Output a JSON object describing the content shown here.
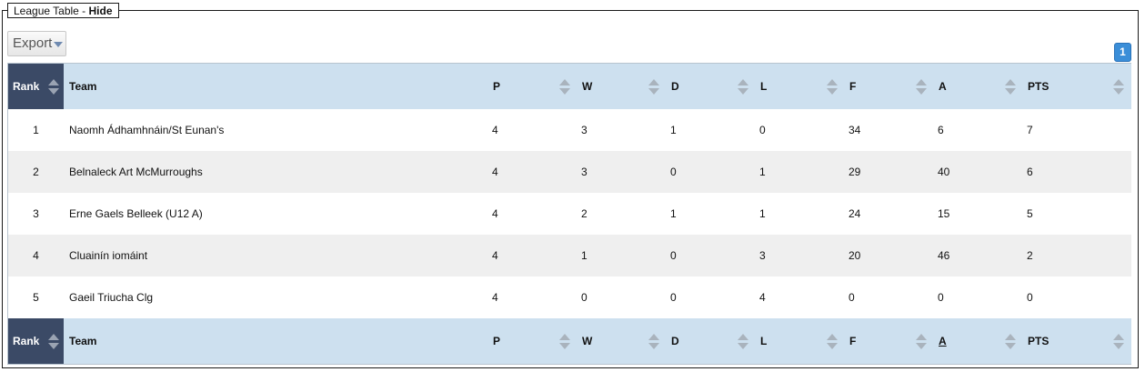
{
  "legend": {
    "title": "League Table - ",
    "hide_label": "Hide"
  },
  "toolbar": {
    "export_label": "Export"
  },
  "pagination": {
    "current_page": "1"
  },
  "table": {
    "columns": [
      "Rank",
      "Team",
      "P",
      "W",
      "D",
      "L",
      "F",
      "A",
      "PTS"
    ],
    "rows": [
      {
        "rank": "1",
        "team": "Naomh Ádhamhnáin/St Eunan's",
        "p": "4",
        "w": "3",
        "d": "1",
        "l": "0",
        "f": "34",
        "a": "6",
        "pts": "7"
      },
      {
        "rank": "2",
        "team": "Belnaleck Art McMurroughs",
        "p": "4",
        "w": "3",
        "d": "0",
        "l": "1",
        "f": "29",
        "a": "40",
        "pts": "6"
      },
      {
        "rank": "3",
        "team": "Erne Gaels Belleek (U12 A)",
        "p": "4",
        "w": "2",
        "d": "1",
        "l": "1",
        "f": "24",
        "a": "15",
        "pts": "5"
      },
      {
        "rank": "4",
        "team": "Cluainín iomáint",
        "p": "4",
        "w": "1",
        "d": "0",
        "l": "3",
        "f": "20",
        "a": "46",
        "pts": "2"
      },
      {
        "rank": "5",
        "team": "Gaeil Triucha Clg",
        "p": "4",
        "w": "0",
        "d": "0",
        "l": "4",
        "f": "0",
        "a": "0",
        "pts": "0"
      }
    ]
  },
  "colors": {
    "header_bg": "#cde0ef",
    "rank_header_bg": "#3b4a66",
    "row_alt_bg": "#efefef",
    "badge_bg": "#3a8ed8"
  },
  "icons": {
    "sort": "sort-both-icon",
    "dropdown": "caret-down-icon"
  }
}
